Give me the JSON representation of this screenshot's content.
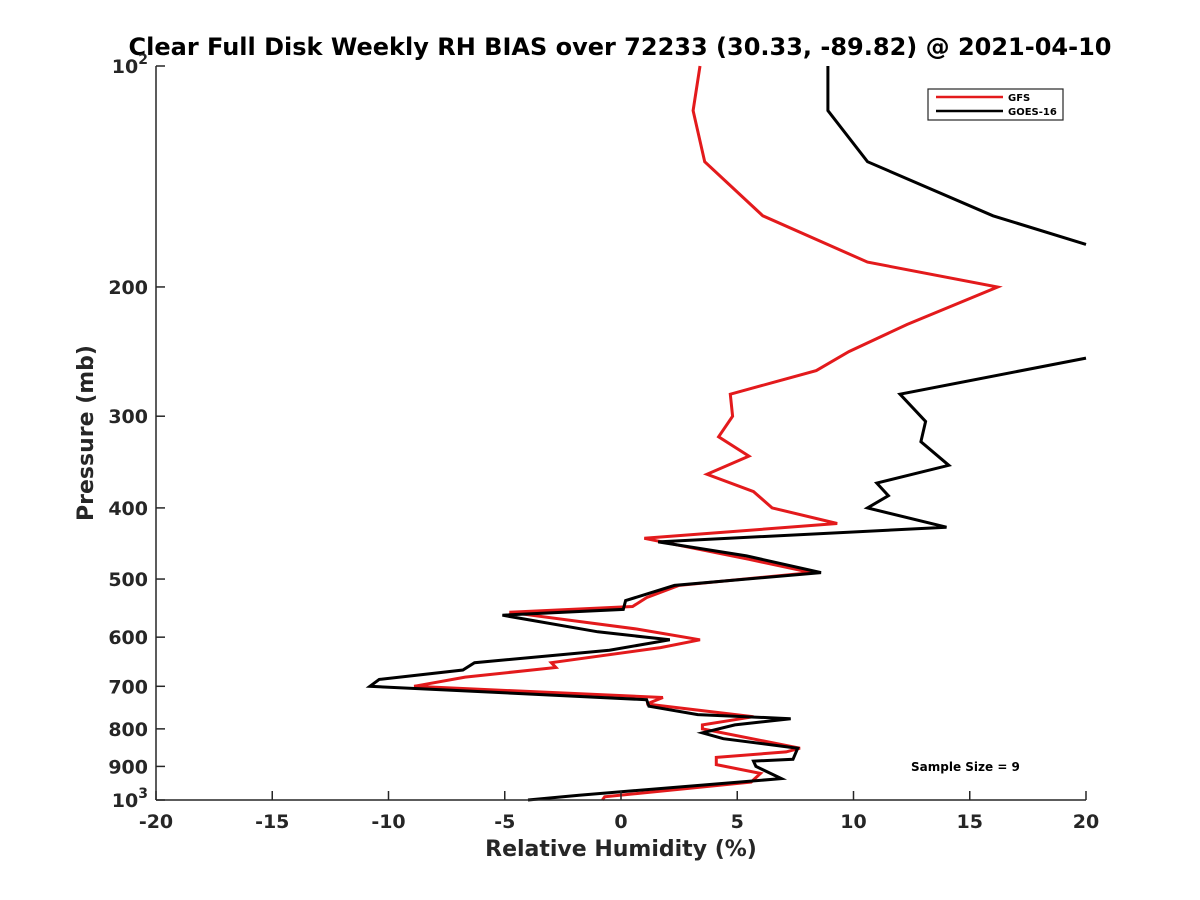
{
  "chart_data": {
    "type": "line",
    "title": "Clear Full Disk Weekly RH BIAS over 72233 (30.33, -89.82) @ 2021-04-10",
    "xlabel": "Relative Humidity (%)",
    "ylabel": "Pressure (mb)",
    "xlim": [
      -20,
      20
    ],
    "ylim": [
      100,
      1000
    ],
    "yscale": "log",
    "yreversed": true,
    "grid": false,
    "legend_position": "top-right",
    "x_ticks": [
      "-20",
      "-15",
      "-10",
      "-5",
      "0",
      "5",
      "10",
      "15",
      "20"
    ],
    "y_ticks": [
      {
        "value": 100,
        "base": "10",
        "exp": "2"
      },
      {
        "value": 200,
        "label": "200"
      },
      {
        "value": 300,
        "label": "300"
      },
      {
        "value": 400,
        "label": "400"
      },
      {
        "value": 500,
        "label": "500"
      },
      {
        "value": 600,
        "label": "600"
      },
      {
        "value": 700,
        "label": "700"
      },
      {
        "value": 800,
        "label": "800"
      },
      {
        "value": 900,
        "label": "900"
      },
      {
        "value": 1000,
        "base": "10",
        "exp": "3"
      }
    ],
    "annotation": "Sample Size = 9",
    "series": [
      {
        "name": "GFS",
        "color": "#e31a1c",
        "points": [
          [
            3.4,
            100
          ],
          [
            3.1,
            115
          ],
          [
            3.6,
            135
          ],
          [
            6.1,
            160
          ],
          [
            10.6,
            185
          ],
          [
            16.2,
            200
          ],
          [
            12.3,
            225
          ],
          [
            9.8,
            245
          ],
          [
            8.4,
            260
          ],
          [
            4.7,
            280
          ],
          [
            4.8,
            300
          ],
          [
            4.2,
            320
          ],
          [
            5.5,
            340
          ],
          [
            3.7,
            360
          ],
          [
            5.7,
            380
          ],
          [
            6.5,
            400
          ],
          [
            9.3,
            420
          ],
          [
            1.0,
            440
          ],
          [
            5.5,
            470
          ],
          [
            8.2,
            490
          ],
          [
            2.5,
            510
          ],
          [
            1.1,
            530
          ],
          [
            0.5,
            545
          ],
          [
            -4.8,
            555
          ],
          [
            0.7,
            585
          ],
          [
            3.4,
            605
          ],
          [
            1.7,
            620
          ],
          [
            -3.0,
            650
          ],
          [
            -2.8,
            660
          ],
          [
            -6.7,
            680
          ],
          [
            -8.9,
            700
          ],
          [
            1.8,
            725
          ],
          [
            1.1,
            740
          ],
          [
            5.7,
            770
          ],
          [
            3.5,
            790
          ],
          [
            3.5,
            800
          ],
          [
            7.7,
            850
          ],
          [
            7.1,
            860
          ],
          [
            4.1,
            875
          ],
          [
            4.1,
            895
          ],
          [
            6.0,
            920
          ],
          [
            5.6,
            945
          ],
          [
            -0.7,
            990
          ],
          [
            -0.8,
            1000
          ]
        ]
      },
      {
        "name": "GOES-16",
        "color": "#000000",
        "points": [
          [
            8.9,
            100
          ],
          [
            8.9,
            115
          ],
          [
            10.6,
            135
          ],
          [
            16.0,
            160
          ],
          [
            20.0,
            175
          ],
          [
            null,
            null
          ],
          [
            20.0,
            250
          ],
          [
            12.0,
            280
          ],
          [
            13.1,
            305
          ],
          [
            12.9,
            325
          ],
          [
            14.1,
            350
          ],
          [
            11.0,
            370
          ],
          [
            11.5,
            385
          ],
          [
            10.6,
            400
          ],
          [
            14.0,
            425
          ],
          [
            1.6,
            445
          ],
          [
            5.4,
            465
          ],
          [
            8.6,
            490
          ],
          [
            2.3,
            510
          ],
          [
            0.2,
            535
          ],
          [
            0.1,
            550
          ],
          [
            -5.1,
            560
          ],
          [
            -1.0,
            590
          ],
          [
            2.1,
            605
          ],
          [
            -0.5,
            625
          ],
          [
            -6.3,
            650
          ],
          [
            -6.8,
            665
          ],
          [
            -10.4,
            685
          ],
          [
            -10.8,
            700
          ],
          [
            1.1,
            730
          ],
          [
            1.2,
            745
          ],
          [
            3.3,
            765
          ],
          [
            7.3,
            775
          ],
          [
            4.9,
            790
          ],
          [
            3.5,
            810
          ],
          [
            4.4,
            825
          ],
          [
            7.6,
            850
          ],
          [
            7.4,
            880
          ],
          [
            5.7,
            885
          ],
          [
            5.8,
            900
          ],
          [
            6.9,
            935
          ],
          [
            -1.8,
            985
          ],
          [
            -4.0,
            1000
          ]
        ]
      }
    ]
  }
}
